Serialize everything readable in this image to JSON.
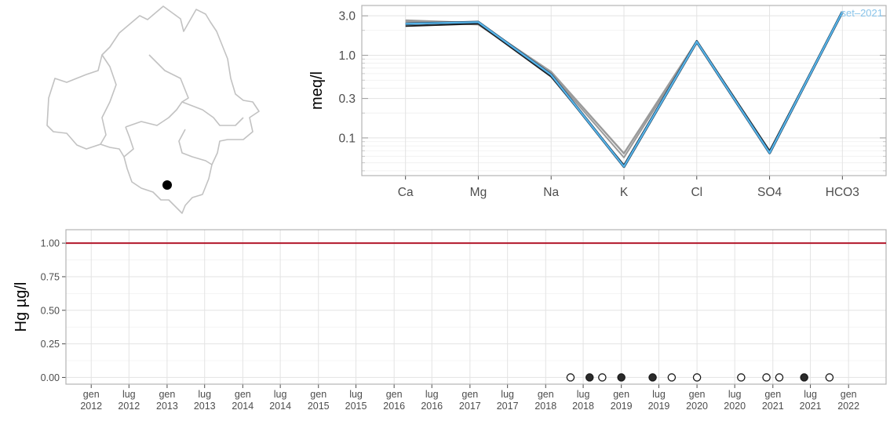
{
  "colors": {
    "map_outline": "#c2c2c2",
    "marker": "#000000",
    "grid": "#e3e3e3",
    "panel_border": "#b3b3b3",
    "limit_line": "#b2182b",
    "highlight_series": "#56b4e9",
    "past_series": "#9a9a9a",
    "dark_series": "#1a1a1a",
    "filled_point": "#2b2b2b"
  },
  "chart_data": [
    {
      "type": "line",
      "scale": "log",
      "ylabel": "meq/l",
      "xlabel": "",
      "categories": [
        "Ca",
        "Mg",
        "Na",
        "K",
        "Cl",
        "SO4",
        "HCO3"
      ],
      "y_ticks": [
        0.1,
        0.3,
        1.0,
        3.0
      ],
      "y_tick_labels": [
        "0.1",
        "0.3",
        "1.0",
        "3.0"
      ],
      "ylim": [
        0.035,
        4.0
      ],
      "annotation": "set–2021",
      "series": [
        {
          "values": [
            2.65,
            2.45,
            0.63,
            0.065,
            1.48,
            0.069,
            3.35
          ]
        },
        {
          "values": [
            2.55,
            2.35,
            0.6,
            0.058,
            1.45,
            0.066,
            3.35
          ]
        },
        {
          "values": [
            2.25,
            2.4,
            0.55,
            0.047,
            1.5,
            0.07,
            3.35
          ]
        },
        {
          "values": [
            2.4,
            2.52,
            0.58,
            0.045,
            1.46,
            0.066,
            3.35
          ]
        }
      ]
    },
    {
      "type": "scatter",
      "ylabel": "Hg µg/l",
      "xlabel": "",
      "ylim": [
        -0.05,
        1.1
      ],
      "y_ticks": [
        0,
        0.25,
        0.5,
        0.75,
        1.0
      ],
      "y_tick_labels": [
        "0.00",
        "0.25",
        "0.50",
        "0.75",
        "1.00"
      ],
      "xlim": [
        "2011-09-01",
        "2022-07-01"
      ],
      "x_ticks": [
        "2012-01-01",
        "2012-07-01",
        "2013-01-01",
        "2013-07-01",
        "2014-01-01",
        "2014-07-01",
        "2015-01-01",
        "2015-07-01",
        "2016-01-01",
        "2016-07-01",
        "2017-01-01",
        "2017-07-01",
        "2018-01-01",
        "2018-07-01",
        "2019-01-01",
        "2019-07-01",
        "2020-01-01",
        "2020-07-01",
        "2021-01-01",
        "2021-07-01",
        "2022-01-01"
      ],
      "x_tick_labels": [
        [
          "gen",
          "2012"
        ],
        [
          "lug",
          "2012"
        ],
        [
          "gen",
          "2013"
        ],
        [
          "lug",
          "2013"
        ],
        [
          "gen",
          "2014"
        ],
        [
          "lug",
          "2014"
        ],
        [
          "gen",
          "2015"
        ],
        [
          "lug",
          "2015"
        ],
        [
          "gen",
          "2016"
        ],
        [
          "lug",
          "2016"
        ],
        [
          "gen",
          "2017"
        ],
        [
          "lug",
          "2017"
        ],
        [
          "gen",
          "2018"
        ],
        [
          "lug",
          "2018"
        ],
        [
          "gen",
          "2019"
        ],
        [
          "lug",
          "2019"
        ],
        [
          "gen",
          "2020"
        ],
        [
          "lug",
          "2020"
        ],
        [
          "gen",
          "2021"
        ],
        [
          "lug",
          "2021"
        ],
        [
          "gen",
          "2022"
        ]
      ],
      "limit": 1.0,
      "points": [
        {
          "x": "2018-05-01",
          "y": 0,
          "filled": false
        },
        {
          "x": "2018-08-01",
          "y": 0,
          "filled": true
        },
        {
          "x": "2018-10-01",
          "y": 0,
          "filled": false
        },
        {
          "x": "2019-01-01",
          "y": 0,
          "filled": true
        },
        {
          "x": "2019-06-01",
          "y": 0,
          "filled": true
        },
        {
          "x": "2019-09-01",
          "y": 0,
          "filled": false
        },
        {
          "x": "2020-01-01",
          "y": 0,
          "filled": false
        },
        {
          "x": "2020-08-01",
          "y": 0,
          "filled": false
        },
        {
          "x": "2020-12-01",
          "y": 0,
          "filled": false
        },
        {
          "x": "2021-02-01",
          "y": 0,
          "filled": false
        },
        {
          "x": "2021-06-01",
          "y": 0,
          "filled": true
        },
        {
          "x": "2021-10-01",
          "y": 0,
          "filled": false
        }
      ]
    }
  ]
}
